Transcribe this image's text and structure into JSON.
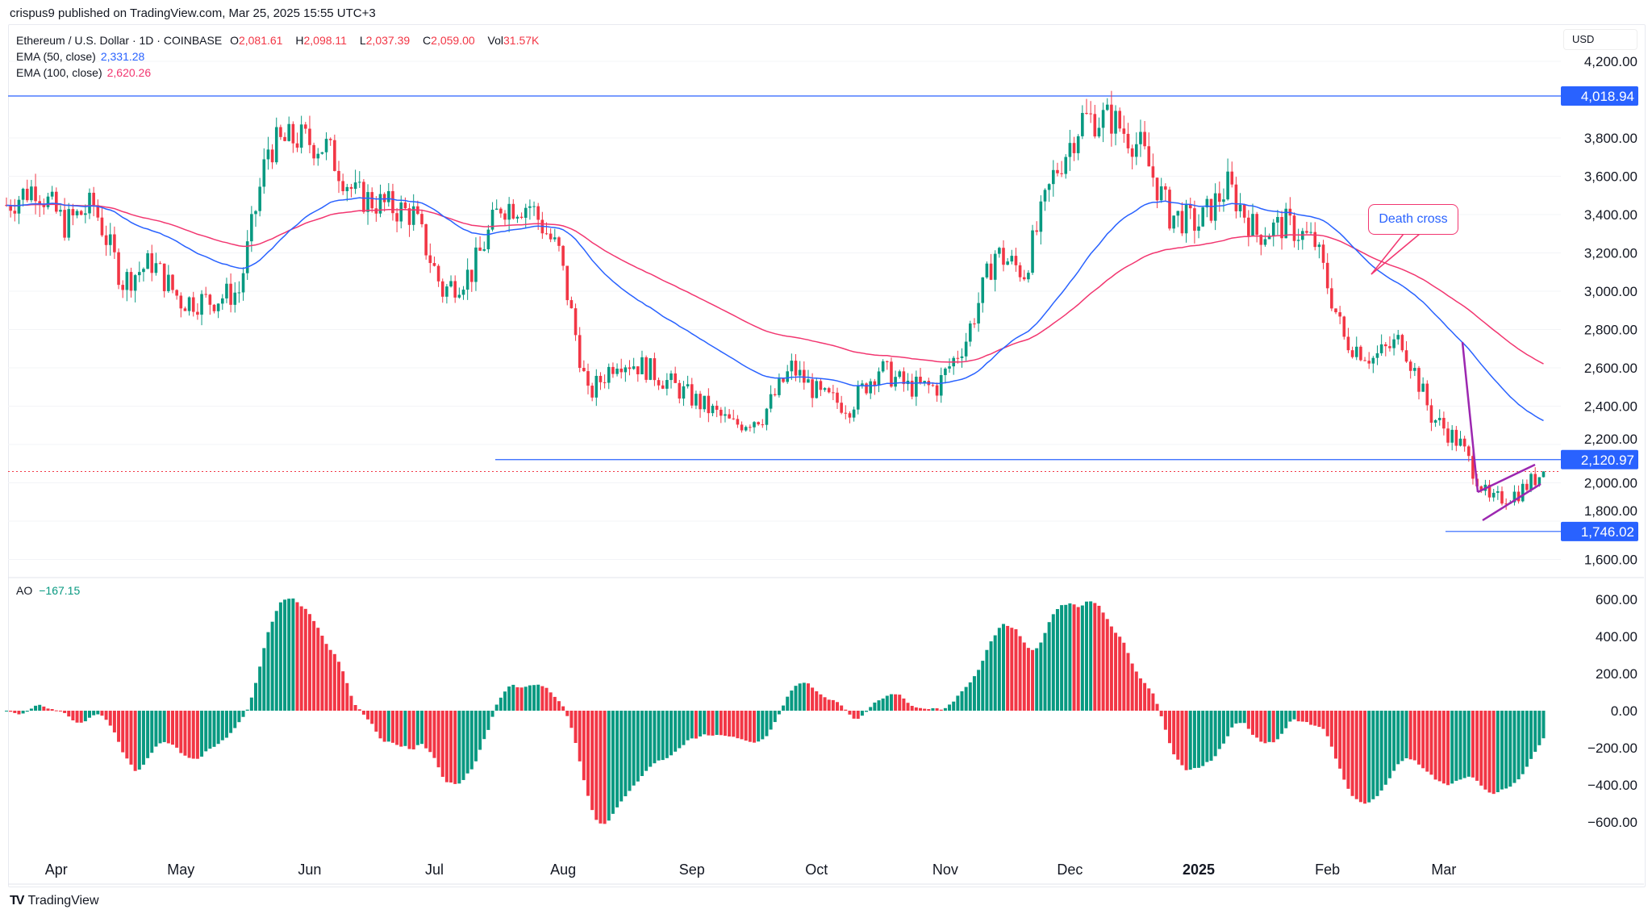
{
  "header": {
    "published": "crispus9 published on TradingView.com, Mar 25, 2025 15:55 UTC+3"
  },
  "legend": {
    "symbol": "Ethereum / U.S. Dollar · 1D · COINBASE",
    "o_label": "O",
    "o": "2,081.61",
    "h_label": "H",
    "h": "2,098.11",
    "l_label": "L",
    "l": "2,037.39",
    "c_label": "C",
    "c": "2,059.00",
    "vol_label": "Vol",
    "vol": "31.57K",
    "ema50_label": "EMA (50, close)",
    "ema50": "2,331.28",
    "ema100_label": "EMA (100, close)",
    "ema100": "2,620.26"
  },
  "ao": {
    "label": "AO",
    "value": "−167.15"
  },
  "currency": "USD",
  "annotation": {
    "text": "Death cross"
  },
  "brand": {
    "name": "TradingView",
    "logo_text": "TV"
  },
  "colors": {
    "up": "#089981",
    "down": "#f23645",
    "ema50": "#2962ff",
    "ema100": "#f23670",
    "level": "#2962ff",
    "pattern": "#9c27b0"
  },
  "chart_data": [
    {
      "type": "candlestick",
      "title": "Ethereum / U.S. Dollar · 1D · COINBASE",
      "dates": [
        "2024-03-20",
        "2024-03-27",
        "2024-04-03",
        "2024-04-10",
        "2024-04-17",
        "2024-04-24",
        "2024-05-01",
        "2024-05-08",
        "2024-05-15",
        "2024-05-22",
        "2024-05-29",
        "2024-06-05",
        "2024-06-12",
        "2024-06-19",
        "2024-06-26",
        "2024-07-03",
        "2024-07-10",
        "2024-07-17",
        "2024-07-24",
        "2024-07-31",
        "2024-08-07",
        "2024-08-14",
        "2024-08-21",
        "2024-08-28",
        "2024-09-04",
        "2024-09-11",
        "2024-09-18",
        "2024-09-25",
        "2024-10-02",
        "2024-10-09",
        "2024-10-16",
        "2024-10-23",
        "2024-10-30",
        "2024-11-06",
        "2024-11-13",
        "2024-11-20",
        "2024-11-27",
        "2024-12-04",
        "2024-12-11",
        "2024-12-18",
        "2024-12-25",
        "2025-01-01",
        "2025-01-08",
        "2025-01-15",
        "2025-01-22",
        "2025-01-29",
        "2025-02-05",
        "2025-02-12",
        "2025-02-19",
        "2025-02-26",
        "2025-03-05",
        "2025-03-12",
        "2025-03-19",
        "2025-03-25"
      ],
      "close": [
        3450,
        3550,
        3350,
        3450,
        3050,
        3150,
        2950,
        2950,
        3000,
        3750,
        3800,
        3750,
        3500,
        3450,
        3400,
        3000,
        3100,
        3450,
        3450,
        3200,
        2450,
        2650,
        2600,
        2500,
        2400,
        2300,
        2350,
        2600,
        2450,
        2400,
        2600,
        2500,
        2500,
        2750,
        3200,
        3100,
        3600,
        3900,
        3900,
        3750,
        3400,
        3350,
        3550,
        3300,
        3350,
        3250,
        2750,
        2650,
        2750,
        2350,
        2200,
        1900,
        1950,
        2059
      ],
      "y_axis": {
        "ticks": [
          1600,
          1800,
          2000,
          2200,
          2400,
          2600,
          2800,
          3000,
          3200,
          3400,
          3600,
          3800,
          4200
        ],
        "range": [
          1600,
          4200
        ],
        "unit": "USD",
        "position": "right"
      },
      "x_axis": {
        "ticks": [
          {
            "label": "Apr",
            "date": "2024-04-01"
          },
          {
            "label": "May",
            "date": "2024-05-01"
          },
          {
            "label": "Jun",
            "date": "2024-06-01"
          },
          {
            "label": "Jul",
            "date": "2024-07-01"
          },
          {
            "label": "Aug",
            "date": "2024-08-01"
          },
          {
            "label": "Sep",
            "date": "2024-09-01"
          },
          {
            "label": "Oct",
            "date": "2024-10-01"
          },
          {
            "label": "Nov",
            "date": "2024-11-01"
          },
          {
            "label": "Dec",
            "date": "2024-12-01"
          },
          {
            "label": "2025",
            "date": "2025-01-01",
            "bold": true
          },
          {
            "label": "Feb",
            "date": "2025-02-01"
          },
          {
            "label": "Mar",
            "date": "2025-03-01"
          }
        ]
      },
      "indicators": [
        {
          "name": "EMA (50, close)",
          "last": 2331.28
        },
        {
          "name": "EMA (100, close)",
          "last": 2620.26
        }
      ],
      "levels": [
        {
          "value": 4018.94,
          "label": "4,018.94"
        },
        {
          "value": 2120.97,
          "label": "2,120.97"
        },
        {
          "value": 1746.02,
          "label": "1,746.02"
        }
      ],
      "last_price": 2059.0
    },
    {
      "type": "bar",
      "title": "AO",
      "last": -167.15,
      "y_axis": {
        "ticks": [
          -600,
          -400,
          -200,
          0,
          200,
          400,
          600
        ],
        "labels": [
          "−600.00",
          "−400.00",
          "−200.00",
          "0.00",
          "200.00",
          "400.00",
          "600.00"
        ],
        "range": [
          -640,
          640
        ],
        "position": "right"
      }
    }
  ]
}
